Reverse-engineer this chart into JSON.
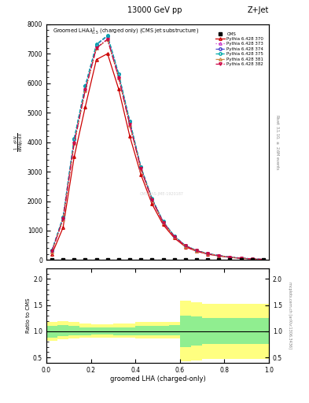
{
  "title_top": "13000 GeV pp",
  "title_right": "Z+Jet",
  "plot_title": "Groomed LHA$\\lambda^1_{0.5}$ (charged only) (CMS jet substructure)",
  "xlabel": "groomed LHA (charged-only)",
  "ylabel_ratio": "Ratio to CMS",
  "ylabel_right_main": "Rivet 3.1.10, $\\geq$ 2.6M events",
  "ylabel_right_ratio": "mcplots.cern.ch [arXiv:1306.3436]",
  "cms_watermark": "CMS-PAS-JME-1920187",
  "x_bins": [
    0.0,
    0.05,
    0.1,
    0.15,
    0.2,
    0.25,
    0.3,
    0.35,
    0.4,
    0.45,
    0.5,
    0.55,
    0.6,
    0.65,
    0.7,
    0.75,
    0.8,
    0.85,
    0.9,
    0.95,
    1.0
  ],
  "cms_data": [
    0,
    0,
    0,
    0,
    0,
    0,
    0,
    0,
    0,
    0,
    0,
    0,
    0,
    0,
    0,
    0,
    0,
    0,
    0,
    0
  ],
  "py370": [
    200,
    1100,
    3500,
    5200,
    6800,
    7000,
    5800,
    4200,
    2900,
    1900,
    1200,
    750,
    450,
    300,
    200,
    140,
    90,
    60,
    35,
    20
  ],
  "py373": [
    300,
    1400,
    4000,
    5800,
    7200,
    7500,
    6200,
    4600,
    3100,
    2050,
    1280,
    800,
    480,
    320,
    215,
    150,
    97,
    65,
    38,
    22
  ],
  "py374": [
    320,
    1450,
    4100,
    5900,
    7300,
    7600,
    6300,
    4700,
    3150,
    2080,
    1300,
    815,
    490,
    328,
    220,
    153,
    99,
    67,
    39,
    23
  ],
  "py375": [
    330,
    1460,
    4120,
    5920,
    7320,
    7620,
    6320,
    4720,
    3160,
    2090,
    1310,
    820,
    493,
    330,
    222,
    154,
    100,
    68,
    40,
    24
  ],
  "py381": [
    290,
    1380,
    3950,
    5750,
    7180,
    7480,
    6180,
    4580,
    3090,
    2040,
    1275,
    795,
    477,
    318,
    213,
    149,
    96,
    64,
    37,
    21
  ],
  "py382": [
    295,
    1390,
    3970,
    5770,
    7190,
    7490,
    6190,
    4590,
    3095,
    2045,
    1278,
    798,
    479,
    319,
    214,
    150,
    97,
    65,
    38,
    22
  ],
  "ratio_green_lo": [
    0.88,
    0.9,
    0.92,
    0.93,
    0.94,
    0.94,
    0.93,
    0.93,
    0.92,
    0.92,
    0.92,
    0.92,
    0.7,
    0.72,
    0.75,
    0.75,
    0.75,
    0.75,
    0.75,
    0.75
  ],
  "ratio_green_hi": [
    1.1,
    1.12,
    1.1,
    1.08,
    1.07,
    1.07,
    1.08,
    1.08,
    1.1,
    1.1,
    1.1,
    1.12,
    1.3,
    1.28,
    1.25,
    1.25,
    1.25,
    1.25,
    1.25,
    1.25
  ],
  "ratio_yellow_lo": [
    0.82,
    0.84,
    0.86,
    0.87,
    0.88,
    0.88,
    0.87,
    0.87,
    0.86,
    0.86,
    0.86,
    0.86,
    0.42,
    0.44,
    0.47,
    0.47,
    0.47,
    0.47,
    0.47,
    0.47
  ],
  "ratio_yellow_hi": [
    1.18,
    1.2,
    1.18,
    1.15,
    1.13,
    1.13,
    1.15,
    1.15,
    1.18,
    1.18,
    1.18,
    1.18,
    1.58,
    1.56,
    1.53,
    1.53,
    1.53,
    1.53,
    1.53,
    1.53
  ],
  "ylim_main": [
    0,
    8000
  ],
  "yticks_main": [
    0,
    1000,
    2000,
    3000,
    4000,
    5000,
    6000,
    7000,
    8000
  ],
  "ylim_ratio": [
    0.4,
    2.2
  ],
  "colors": {
    "cms": "black",
    "py370": "#cc0000",
    "py373": "#cc44cc",
    "py374": "#4444cc",
    "py375": "#00aaaa",
    "py381": "#cc8844",
    "py382": "#cc0044"
  },
  "green_color": "#90ee90",
  "yellow_color": "#ffff80"
}
